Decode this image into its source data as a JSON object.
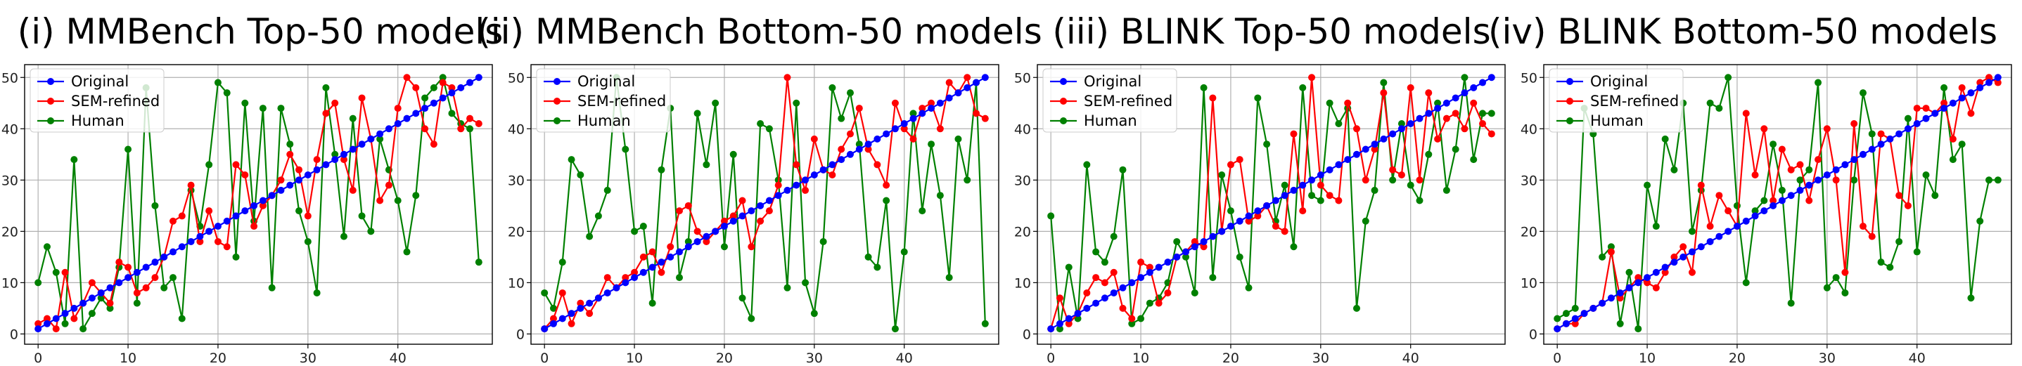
{
  "figure": {
    "colors": {
      "Original": "#0000ff",
      "SEM-refined": "#ff0000",
      "Human": "#008000"
    },
    "legend_location": "top-left"
  },
  "chart_data": [
    {
      "type": "line",
      "title": "(i) MMBench Top-50 models",
      "xlim": [
        -1.5,
        50.5
      ],
      "ylim": [
        -2,
        52.5
      ],
      "xticks": [
        0,
        10,
        20,
        30,
        40
      ],
      "yticks": [
        0,
        10,
        20,
        30,
        40,
        50
      ],
      "grid": true,
      "legend": "top-left",
      "x": [
        0,
        1,
        2,
        3,
        4,
        5,
        6,
        7,
        8,
        9,
        10,
        11,
        12,
        13,
        14,
        15,
        16,
        17,
        18,
        19,
        20,
        21,
        22,
        23,
        24,
        25,
        26,
        27,
        28,
        29,
        30,
        31,
        32,
        33,
        34,
        35,
        36,
        37,
        38,
        39,
        40,
        41,
        42,
        43,
        44,
        45,
        46,
        47,
        48,
        49
      ],
      "series": [
        {
          "name": "Original",
          "values": [
            1,
            2,
            3,
            4,
            5,
            6,
            7,
            8,
            9,
            10,
            11,
            12,
            13,
            14,
            15,
            16,
            17,
            18,
            19,
            20,
            21,
            22,
            23,
            24,
            25,
            26,
            27,
            28,
            29,
            30,
            31,
            32,
            33,
            34,
            35,
            36,
            37,
            38,
            39,
            40,
            41,
            42,
            43,
            44,
            45,
            46,
            47,
            48,
            49,
            50
          ]
        },
        {
          "name": "SEM-refined",
          "values": [
            2,
            3,
            1,
            12,
            3,
            6,
            10,
            8,
            6,
            14,
            13,
            8,
            9,
            11,
            15,
            22,
            23,
            29,
            18,
            24,
            18,
            17,
            33,
            31,
            21,
            25,
            27,
            30,
            35,
            32,
            23,
            34,
            43,
            45,
            34,
            28,
            46,
            38,
            26,
            29,
            44,
            50,
            48,
            40,
            37,
            49,
            48,
            40,
            42,
            41
          ]
        },
        {
          "name": "Human",
          "values": [
            10,
            17,
            12,
            2,
            34,
            1,
            4,
            7,
            5,
            13,
            36,
            6,
            48,
            25,
            9,
            11,
            3,
            28,
            21,
            33,
            49,
            47,
            15,
            45,
            22,
            44,
            9,
            44,
            37,
            24,
            18,
            8,
            48,
            35,
            19,
            42,
            23,
            20,
            38,
            32,
            26,
            16,
            27,
            46,
            48,
            50,
            43,
            41,
            40,
            14
          ]
        }
      ]
    },
    {
      "type": "line",
      "title": "(ii) MMBench Bottom-50 models",
      "xlim": [
        -1.5,
        50.5
      ],
      "ylim": [
        -2,
        52.5
      ],
      "xticks": [
        0,
        10,
        20,
        30,
        40
      ],
      "yticks": [
        0,
        10,
        20,
        30,
        40,
        50
      ],
      "grid": true,
      "legend": "top-left",
      "x": [
        0,
        1,
        2,
        3,
        4,
        5,
        6,
        7,
        8,
        9,
        10,
        11,
        12,
        13,
        14,
        15,
        16,
        17,
        18,
        19,
        20,
        21,
        22,
        23,
        24,
        25,
        26,
        27,
        28,
        29,
        30,
        31,
        32,
        33,
        34,
        35,
        36,
        37,
        38,
        39,
        40,
        41,
        42,
        43,
        44,
        45,
        46,
        47,
        48,
        49
      ],
      "series": [
        {
          "name": "Original",
          "values": [
            1,
            2,
            3,
            4,
            5,
            6,
            7,
            8,
            9,
            10,
            11,
            12,
            13,
            14,
            15,
            16,
            17,
            18,
            19,
            20,
            21,
            22,
            23,
            24,
            25,
            26,
            27,
            28,
            29,
            30,
            31,
            32,
            33,
            34,
            35,
            36,
            37,
            38,
            39,
            40,
            41,
            42,
            43,
            44,
            45,
            46,
            47,
            48,
            49,
            50
          ]
        },
        {
          "name": "SEM-refined",
          "values": [
            1,
            3,
            8,
            2,
            6,
            4,
            7,
            11,
            9,
            11,
            12,
            15,
            16,
            12,
            17,
            24,
            25,
            20,
            18,
            20,
            22,
            23,
            26,
            17,
            22,
            24,
            29,
            50,
            33,
            28,
            38,
            32,
            31,
            36,
            39,
            44,
            36,
            33,
            29,
            45,
            40,
            38,
            44,
            45,
            40,
            49,
            47,
            50,
            43,
            42
          ]
        },
        {
          "name": "Human",
          "values": [
            8,
            5,
            14,
            34,
            31,
            19,
            23,
            28,
            50,
            36,
            20,
            21,
            6,
            32,
            44,
            11,
            18,
            43,
            33,
            45,
            17,
            35,
            7,
            3,
            41,
            40,
            30,
            9,
            45,
            10,
            4,
            18,
            48,
            42,
            47,
            37,
            15,
            13,
            26,
            1,
            16,
            43,
            24,
            37,
            27,
            11,
            38,
            30,
            49,
            2
          ]
        }
      ]
    },
    {
      "type": "line",
      "title": "(iii) BLINK Top-50 models",
      "xlim": [
        -1.5,
        50.5
      ],
      "ylim": [
        -2,
        52.5
      ],
      "xticks": [
        0,
        10,
        20,
        30,
        40
      ],
      "yticks": [
        0,
        10,
        20,
        30,
        40,
        50
      ],
      "grid": true,
      "legend": "top-left",
      "x": [
        0,
        1,
        2,
        3,
        4,
        5,
        6,
        7,
        8,
        9,
        10,
        11,
        12,
        13,
        14,
        15,
        16,
        17,
        18,
        19,
        20,
        21,
        22,
        23,
        24,
        25,
        26,
        27,
        28,
        29,
        30,
        31,
        32,
        33,
        34,
        35,
        36,
        37,
        38,
        39,
        40,
        41,
        42,
        43,
        44,
        45,
        46,
        47,
        48,
        49
      ],
      "series": [
        {
          "name": "Original",
          "values": [
            1,
            2,
            3,
            4,
            5,
            6,
            7,
            8,
            9,
            10,
            11,
            12,
            13,
            14,
            15,
            16,
            17,
            18,
            19,
            20,
            21,
            22,
            23,
            24,
            25,
            26,
            27,
            28,
            29,
            30,
            31,
            32,
            33,
            34,
            35,
            36,
            37,
            38,
            39,
            40,
            41,
            42,
            43,
            44,
            45,
            46,
            47,
            48,
            49,
            50
          ]
        },
        {
          "name": "SEM-refined",
          "values": [
            1,
            7,
            2,
            4,
            8,
            11,
            10,
            12,
            5,
            3,
            14,
            13,
            6,
            8,
            15,
            16,
            18,
            17,
            46,
            20,
            33,
            34,
            22,
            23,
            25,
            21,
            20,
            39,
            24,
            50,
            29,
            27,
            26,
            45,
            40,
            30,
            36,
            47,
            32,
            31,
            48,
            30,
            47,
            38,
            42,
            43,
            40,
            45,
            41,
            39
          ]
        },
        {
          "name": "Human",
          "values": [
            23,
            1,
            13,
            3,
            33,
            16,
            14,
            19,
            32,
            2,
            3,
            6,
            7,
            10,
            18,
            15,
            8,
            48,
            11,
            31,
            24,
            15,
            9,
            46,
            37,
            22,
            29,
            17,
            48,
            27,
            26,
            45,
            41,
            44,
            5,
            22,
            28,
            49,
            30,
            41,
            29,
            26,
            35,
            45,
            28,
            36,
            50,
            34,
            43,
            43
          ]
        }
      ]
    },
    {
      "type": "line",
      "title": "(iv) BLINK Bottom-50 models",
      "xlim": [
        -1.5,
        50.5
      ],
      "ylim": [
        -2,
        52.5
      ],
      "xticks": [
        0,
        10,
        20,
        30,
        40
      ],
      "yticks": [
        0,
        10,
        20,
        30,
        40,
        50
      ],
      "grid": true,
      "legend": "top-left",
      "x": [
        0,
        1,
        2,
        3,
        4,
        5,
        6,
        7,
        8,
        9,
        10,
        11,
        12,
        13,
        14,
        15,
        16,
        17,
        18,
        19,
        20,
        21,
        22,
        23,
        24,
        25,
        26,
        27,
        28,
        29,
        30,
        31,
        32,
        33,
        34,
        35,
        36,
        37,
        38,
        39,
        40,
        41,
        42,
        43,
        44,
        45,
        46,
        47,
        48,
        49
      ],
      "series": [
        {
          "name": "Original",
          "values": [
            1,
            2,
            3,
            4,
            5,
            6,
            7,
            8,
            9,
            10,
            11,
            12,
            13,
            14,
            15,
            16,
            17,
            18,
            19,
            20,
            21,
            22,
            23,
            24,
            25,
            26,
            27,
            28,
            29,
            30,
            31,
            32,
            33,
            34,
            35,
            36,
            37,
            38,
            39,
            40,
            41,
            42,
            43,
            44,
            45,
            46,
            47,
            48,
            49,
            50
          ]
        },
        {
          "name": "SEM-refined",
          "values": [
            1,
            2,
            2,
            4,
            5,
            6,
            16,
            7,
            9,
            11,
            10,
            9,
            12,
            15,
            17,
            12,
            29,
            21,
            27,
            24,
            21,
            43,
            31,
            40,
            26,
            36,
            32,
            33,
            26,
            34,
            40,
            30,
            12,
            41,
            21,
            19,
            39,
            38,
            27,
            25,
            44,
            44,
            43,
            45,
            38,
            48,
            43,
            49,
            50,
            49
          ]
        },
        {
          "name": "Human",
          "values": [
            3,
            4,
            5,
            44,
            39,
            15,
            17,
            2,
            12,
            1,
            29,
            21,
            38,
            32,
            45,
            20,
            28,
            45,
            44,
            50,
            25,
            10,
            24,
            26,
            37,
            28,
            6,
            30,
            32,
            49,
            9,
            11,
            8,
            30,
            47,
            39,
            14,
            13,
            18,
            42,
            16,
            31,
            27,
            48,
            34,
            37,
            7,
            22,
            30,
            30
          ]
        }
      ]
    }
  ]
}
